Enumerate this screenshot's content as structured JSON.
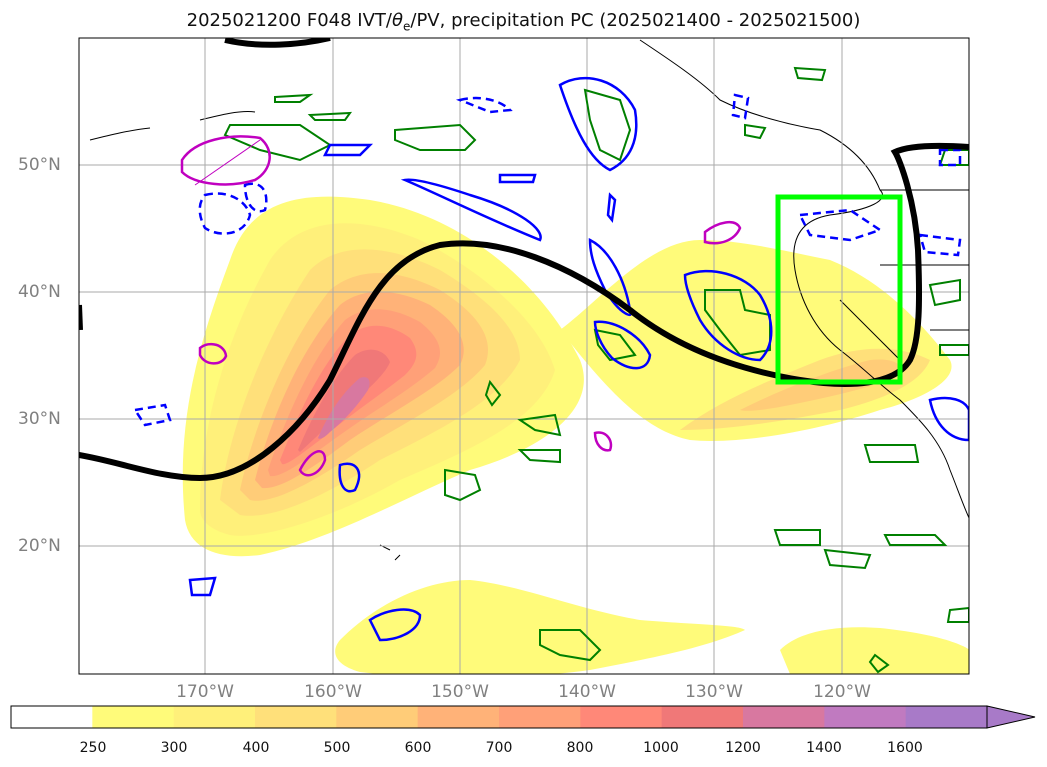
{
  "title_main": "2025021200 F048 IVT/",
  "title_theta": "θ",
  "title_sub": "e",
  "title_rest": "/PV, precipitation PC (2025021400 - 2025021500)",
  "lat_labels": [
    "50°N",
    "40°N",
    "30°N",
    "20°N"
  ],
  "lon_labels": [
    "170°W",
    "160°W",
    "150°W",
    "140°W",
    "130°W",
    "120°W"
  ],
  "colorbar": {
    "levels": [
      "250",
      "300",
      "400",
      "500",
      "600",
      "700",
      "800",
      "1000",
      "1200",
      "1400",
      "1600"
    ],
    "colors": [
      "#ffffff",
      "#fffb7a",
      "#fff07a",
      "#ffe07a",
      "#ffcc78",
      "#ffb278",
      "#ffa078",
      "#ff8878",
      "#f07878",
      "#d878a0",
      "#c07ac0",
      "#a87ac8"
    ],
    "extend": "max"
  },
  "colors": {
    "ivt_contour": "#000000",
    "theta_e_contour": "#0000ff",
    "pv_contour": "#008000",
    "precip_contour": "#c000c0",
    "highlight_box": "#00ff00"
  }
}
